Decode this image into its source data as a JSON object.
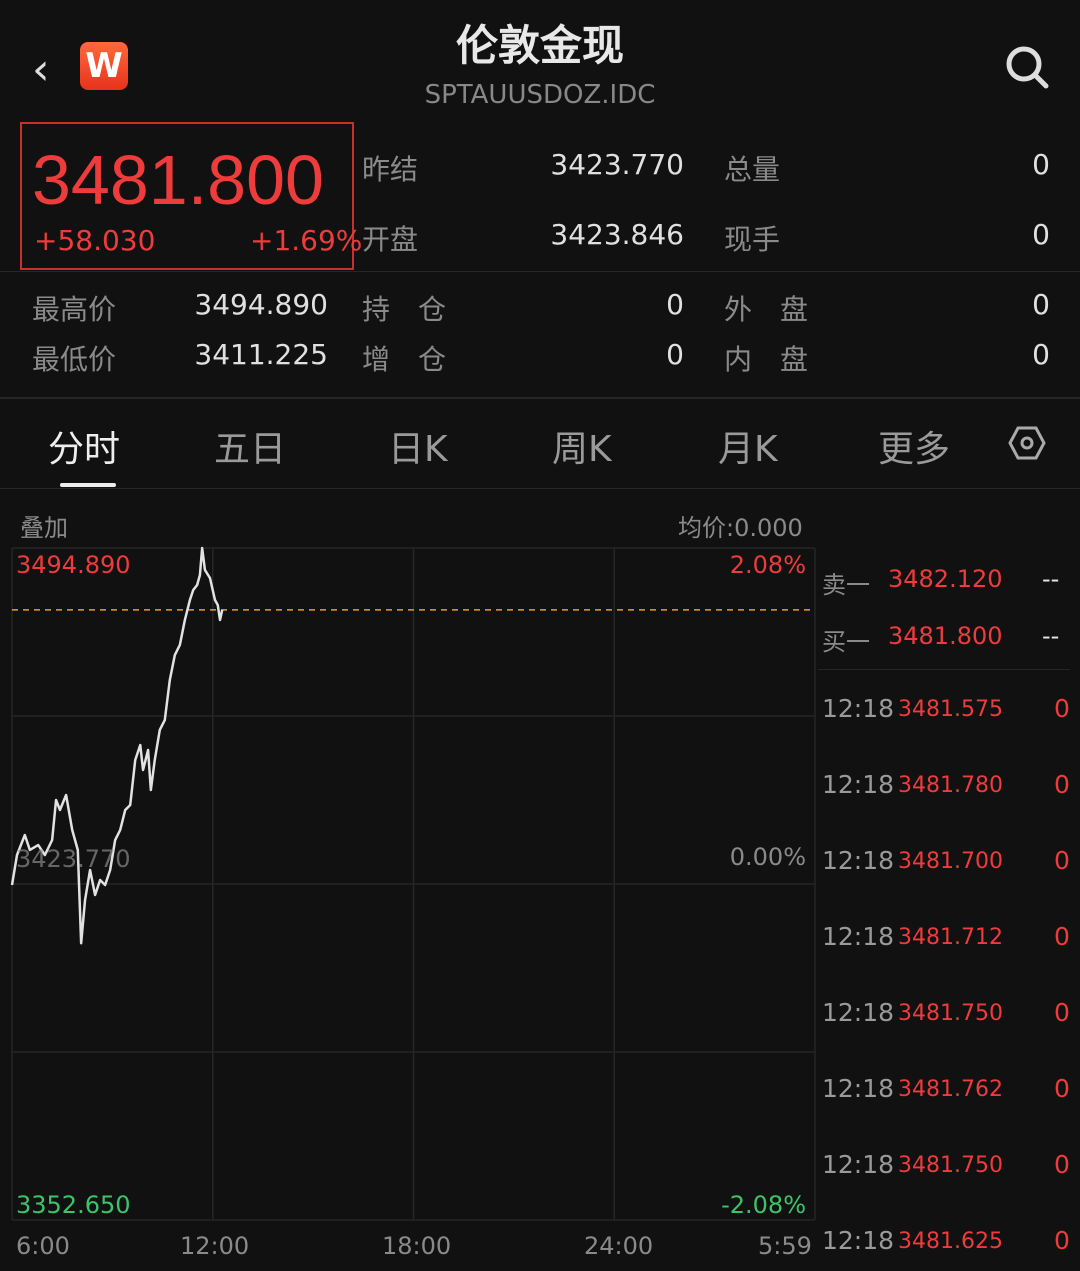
{
  "header": {
    "title": "伦敦金现",
    "symbol": "SPTAUUSDOZ.IDC",
    "back_icon": "chevron-left-icon",
    "logo_letter": "W",
    "search_icon": "search-icon"
  },
  "quote": {
    "price": "3481.800",
    "change": "+58.030",
    "change_pct": "+1.69%",
    "color_up": "#ee3b3b"
  },
  "stats": [
    {
      "label": "昨结",
      "value": "3423.770"
    },
    {
      "label": "总量",
      "value": "0"
    },
    {
      "label": "开盘",
      "value": "3423.846"
    },
    {
      "label": "现手",
      "value": "0"
    },
    {
      "label": "最高价",
      "value": "3494.890"
    },
    {
      "label": "持　仓",
      "value": "0"
    },
    {
      "label": "外　盘",
      "value": "0"
    },
    {
      "label": "最低价",
      "value": "3411.225"
    },
    {
      "label": "增　仓",
      "value": "0"
    },
    {
      "label": "内　盘",
      "value": "0"
    }
  ],
  "tabs": [
    {
      "label": "分时",
      "active": true
    },
    {
      "label": "五日"
    },
    {
      "label": "日K"
    },
    {
      "label": "周K"
    },
    {
      "label": "月K"
    },
    {
      "label": "更多"
    }
  ],
  "settings_icon": "hexagon-settings-icon",
  "chart_bar": {
    "overlay": "叠加",
    "avg": "均价:0.000"
  },
  "chart_data": {
    "type": "line",
    "y_max_label": "3494.890",
    "y_mid_label": "3423.770",
    "y_min_label": "3352.650",
    "pct_max": "2.08%",
    "pct_mid": "0.00%",
    "pct_min": "-2.08%",
    "ylim": [
      3352.65,
      3494.89
    ],
    "x_ticks": [
      "6:00",
      "12:00",
      "18:00",
      "24:00",
      "5:59"
    ],
    "current_price_line": 3481.8,
    "grid": true,
    "points": [
      [
        "6:00",
        3423.56
      ],
      [
        "6:09",
        3429.91
      ],
      [
        "6:23",
        3434.14
      ],
      [
        "6:32",
        3430.97
      ],
      [
        "6:47",
        3432.02
      ],
      [
        "6:59",
        3429.91
      ],
      [
        "7:12",
        3433.08
      ],
      [
        "7:19",
        3441.55
      ],
      [
        "7:26",
        3439.43
      ],
      [
        "7:37",
        3442.61
      ],
      [
        "7:48",
        3435.2
      ],
      [
        "7:58",
        3430.97
      ],
      [
        "8:04",
        3411.23
      ],
      [
        "8:11",
        3420.38
      ],
      [
        "8:20",
        3426.73
      ],
      [
        "8:29",
        3421.44
      ],
      [
        "8:38",
        3424.62
      ],
      [
        "8:47",
        3423.56
      ],
      [
        "8:56",
        3426.73
      ],
      [
        "9:05",
        3433.08
      ],
      [
        "9:14",
        3435.2
      ],
      [
        "9:23",
        3439.43
      ],
      [
        "9:32",
        3440.49
      ],
      [
        "9:41",
        3450.02
      ],
      [
        "9:50",
        3453.19
      ],
      [
        "9:55",
        3447.9
      ],
      [
        "10:04",
        3452.13
      ],
      [
        "10:09",
        3443.67
      ],
      [
        "10:16",
        3450.02
      ],
      [
        "10:25",
        3456.37
      ],
      [
        "10:34",
        3458.48
      ],
      [
        "10:43",
        3466.95
      ],
      [
        "10:52",
        3472.24
      ],
      [
        "11:01",
        3474.36
      ],
      [
        "11:10",
        3479.65
      ],
      [
        "11:19",
        3483.88
      ],
      [
        "11:25",
        3486.0
      ],
      [
        "11:32",
        3487.06
      ],
      [
        "11:37",
        3489.17
      ],
      [
        "11:41",
        3494.89
      ],
      [
        "11:46",
        3490.23
      ],
      [
        "11:55",
        3488.54
      ],
      [
        "12:04",
        3483.88
      ],
      [
        "12:09",
        3482.82
      ],
      [
        "12:13",
        3479.65
      ],
      [
        "12:17",
        3481.8
      ]
    ]
  },
  "orderbook": [
    {
      "label": "卖一",
      "price": "3482.120",
      "vol": "--"
    },
    {
      "label": "买一",
      "price": "3481.800",
      "vol": "--"
    }
  ],
  "ticks": [
    {
      "time": "12:18",
      "price": "3481.575",
      "vol": "0"
    },
    {
      "time": "12:18",
      "price": "3481.780",
      "vol": "0"
    },
    {
      "time": "12:18",
      "price": "3481.700",
      "vol": "0"
    },
    {
      "time": "12:18",
      "price": "3481.712",
      "vol": "0"
    },
    {
      "time": "12:18",
      "price": "3481.750",
      "vol": "0"
    },
    {
      "time": "12:18",
      "price": "3481.762",
      "vol": "0"
    },
    {
      "time": "12:18",
      "price": "3481.750",
      "vol": "0"
    },
    {
      "time": "12:18",
      "price": "3481.625",
      "vol": "0"
    }
  ]
}
